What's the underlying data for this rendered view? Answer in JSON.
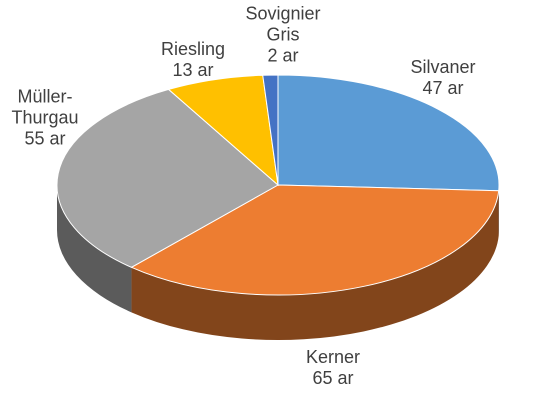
{
  "chart_data": {
    "type": "pie",
    "categories": [
      "Silvaner",
      "Kerner",
      "Müller-Thurgau",
      "Riesling",
      "Sovignier Gris"
    ],
    "values": [
      47,
      65,
      55,
      13,
      2
    ],
    "value_labels": [
      "47 ar",
      "65 ar",
      "55 ar",
      "13 ar",
      "2 ar"
    ],
    "colors": [
      "#5b9bd5",
      "#ed7d31",
      "#a5a5a5",
      "#ffc000",
      "#4472c4"
    ]
  }
}
